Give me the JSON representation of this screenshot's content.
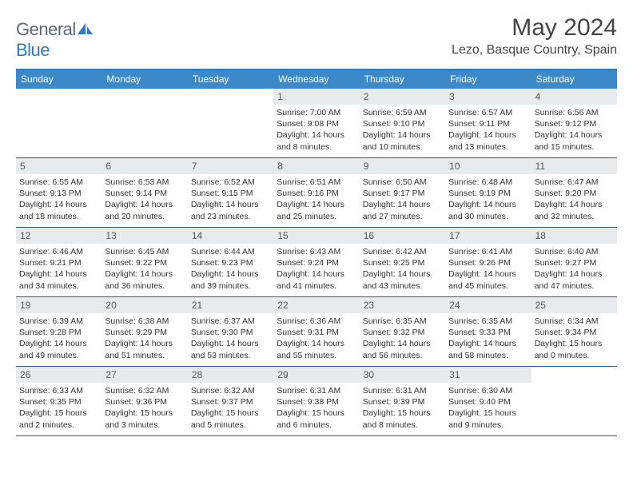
{
  "brand": {
    "part1": "General",
    "part2": "Blue"
  },
  "title": "May 2024",
  "location": "Lezo, Basque Country, Spain",
  "colors": {
    "header_bg": "#3b89c9",
    "header_border": "#2f7abf",
    "row_divider": "#2f5b84",
    "daynum_bg": "#e8ebed",
    "text": "#333333",
    "title_text": "#454545",
    "logo_gray": "#5a6a75",
    "logo_blue": "#2f7abf"
  },
  "day_names": [
    "Sunday",
    "Monday",
    "Tuesday",
    "Wednesday",
    "Thursday",
    "Friday",
    "Saturday"
  ],
  "weeks": [
    [
      {
        "n": "",
        "sr": "",
        "ss": "",
        "dl": ""
      },
      {
        "n": "",
        "sr": "",
        "ss": "",
        "dl": ""
      },
      {
        "n": "",
        "sr": "",
        "ss": "",
        "dl": ""
      },
      {
        "n": "1",
        "sr": "Sunrise: 7:00 AM",
        "ss": "Sunset: 9:08 PM",
        "dl": "Daylight: 14 hours and 8 minutes."
      },
      {
        "n": "2",
        "sr": "Sunrise: 6:59 AM",
        "ss": "Sunset: 9:10 PM",
        "dl": "Daylight: 14 hours and 10 minutes."
      },
      {
        "n": "3",
        "sr": "Sunrise: 6:57 AM",
        "ss": "Sunset: 9:11 PM",
        "dl": "Daylight: 14 hours and 13 minutes."
      },
      {
        "n": "4",
        "sr": "Sunrise: 6:56 AM",
        "ss": "Sunset: 9:12 PM",
        "dl": "Daylight: 14 hours and 15 minutes."
      }
    ],
    [
      {
        "n": "5",
        "sr": "Sunrise: 6:55 AM",
        "ss": "Sunset: 9:13 PM",
        "dl": "Daylight: 14 hours and 18 minutes."
      },
      {
        "n": "6",
        "sr": "Sunrise: 6:53 AM",
        "ss": "Sunset: 9:14 PM",
        "dl": "Daylight: 14 hours and 20 minutes."
      },
      {
        "n": "7",
        "sr": "Sunrise: 6:52 AM",
        "ss": "Sunset: 9:15 PM",
        "dl": "Daylight: 14 hours and 23 minutes."
      },
      {
        "n": "8",
        "sr": "Sunrise: 6:51 AM",
        "ss": "Sunset: 9:16 PM",
        "dl": "Daylight: 14 hours and 25 minutes."
      },
      {
        "n": "9",
        "sr": "Sunrise: 6:50 AM",
        "ss": "Sunset: 9:17 PM",
        "dl": "Daylight: 14 hours and 27 minutes."
      },
      {
        "n": "10",
        "sr": "Sunrise: 6:48 AM",
        "ss": "Sunset: 9:19 PM",
        "dl": "Daylight: 14 hours and 30 minutes."
      },
      {
        "n": "11",
        "sr": "Sunrise: 6:47 AM",
        "ss": "Sunset: 9:20 PM",
        "dl": "Daylight: 14 hours and 32 minutes."
      }
    ],
    [
      {
        "n": "12",
        "sr": "Sunrise: 6:46 AM",
        "ss": "Sunset: 9:21 PM",
        "dl": "Daylight: 14 hours and 34 minutes."
      },
      {
        "n": "13",
        "sr": "Sunrise: 6:45 AM",
        "ss": "Sunset: 9:22 PM",
        "dl": "Daylight: 14 hours and 36 minutes."
      },
      {
        "n": "14",
        "sr": "Sunrise: 6:44 AM",
        "ss": "Sunset: 9:23 PM",
        "dl": "Daylight: 14 hours and 39 minutes."
      },
      {
        "n": "15",
        "sr": "Sunrise: 6:43 AM",
        "ss": "Sunset: 9:24 PM",
        "dl": "Daylight: 14 hours and 41 minutes."
      },
      {
        "n": "16",
        "sr": "Sunrise: 6:42 AM",
        "ss": "Sunset: 9:25 PM",
        "dl": "Daylight: 14 hours and 43 minutes."
      },
      {
        "n": "17",
        "sr": "Sunrise: 6:41 AM",
        "ss": "Sunset: 9:26 PM",
        "dl": "Daylight: 14 hours and 45 minutes."
      },
      {
        "n": "18",
        "sr": "Sunrise: 6:40 AM",
        "ss": "Sunset: 9:27 PM",
        "dl": "Daylight: 14 hours and 47 minutes."
      }
    ],
    [
      {
        "n": "19",
        "sr": "Sunrise: 6:39 AM",
        "ss": "Sunset: 9:28 PM",
        "dl": "Daylight: 14 hours and 49 minutes."
      },
      {
        "n": "20",
        "sr": "Sunrise: 6:38 AM",
        "ss": "Sunset: 9:29 PM",
        "dl": "Daylight: 14 hours and 51 minutes."
      },
      {
        "n": "21",
        "sr": "Sunrise: 6:37 AM",
        "ss": "Sunset: 9:30 PM",
        "dl": "Daylight: 14 hours and 53 minutes."
      },
      {
        "n": "22",
        "sr": "Sunrise: 6:36 AM",
        "ss": "Sunset: 9:31 PM",
        "dl": "Daylight: 14 hours and 55 minutes."
      },
      {
        "n": "23",
        "sr": "Sunrise: 6:35 AM",
        "ss": "Sunset: 9:32 PM",
        "dl": "Daylight: 14 hours and 56 minutes."
      },
      {
        "n": "24",
        "sr": "Sunrise: 6:35 AM",
        "ss": "Sunset: 9:33 PM",
        "dl": "Daylight: 14 hours and 58 minutes."
      },
      {
        "n": "25",
        "sr": "Sunrise: 6:34 AM",
        "ss": "Sunset: 9:34 PM",
        "dl": "Daylight: 15 hours and 0 minutes."
      }
    ],
    [
      {
        "n": "26",
        "sr": "Sunrise: 6:33 AM",
        "ss": "Sunset: 9:35 PM",
        "dl": "Daylight: 15 hours and 2 minutes."
      },
      {
        "n": "27",
        "sr": "Sunrise: 6:32 AM",
        "ss": "Sunset: 9:36 PM",
        "dl": "Daylight: 15 hours and 3 minutes."
      },
      {
        "n": "28",
        "sr": "Sunrise: 6:32 AM",
        "ss": "Sunset: 9:37 PM",
        "dl": "Daylight: 15 hours and 5 minutes."
      },
      {
        "n": "29",
        "sr": "Sunrise: 6:31 AM",
        "ss": "Sunset: 9:38 PM",
        "dl": "Daylight: 15 hours and 6 minutes."
      },
      {
        "n": "30",
        "sr": "Sunrise: 6:31 AM",
        "ss": "Sunset: 9:39 PM",
        "dl": "Daylight: 15 hours and 8 minutes."
      },
      {
        "n": "31",
        "sr": "Sunrise: 6:30 AM",
        "ss": "Sunset: 9:40 PM",
        "dl": "Daylight: 15 hours and 9 minutes."
      },
      {
        "n": "",
        "sr": "",
        "ss": "",
        "dl": ""
      }
    ]
  ]
}
